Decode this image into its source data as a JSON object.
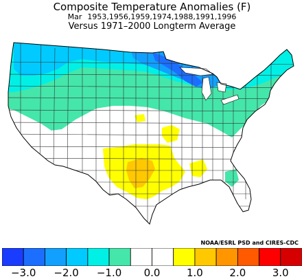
{
  "header": {
    "title": "Composite Temperature Anomalies (F)",
    "month": "Mar",
    "years": "1953,1956,1959,1974,1988,1991,1996",
    "comparison": "Versus 1971–2000 Longterm Average"
  },
  "credit": "NOAA/ESRL PSD and CIRES-CDC",
  "legend": {
    "colors": [
      "#1a3cff",
      "#1c6eff",
      "#12a0ff",
      "#00caff",
      "#00f0e6",
      "#45e6aa",
      "#ffffff",
      "#ffffff",
      "#ffff00",
      "#ffc800",
      "#ff9600",
      "#ff5a00",
      "#ff0000",
      "#d60000"
    ],
    "tick_labels": [
      "−3.0",
      "−2.0",
      "−1.0",
      "0.0",
      "1.0",
      "2.0",
      "3.0"
    ],
    "tick_values": [
      -3.0,
      -2.0,
      -1.0,
      0.0,
      1.0,
      2.0,
      3.0
    ]
  }
}
